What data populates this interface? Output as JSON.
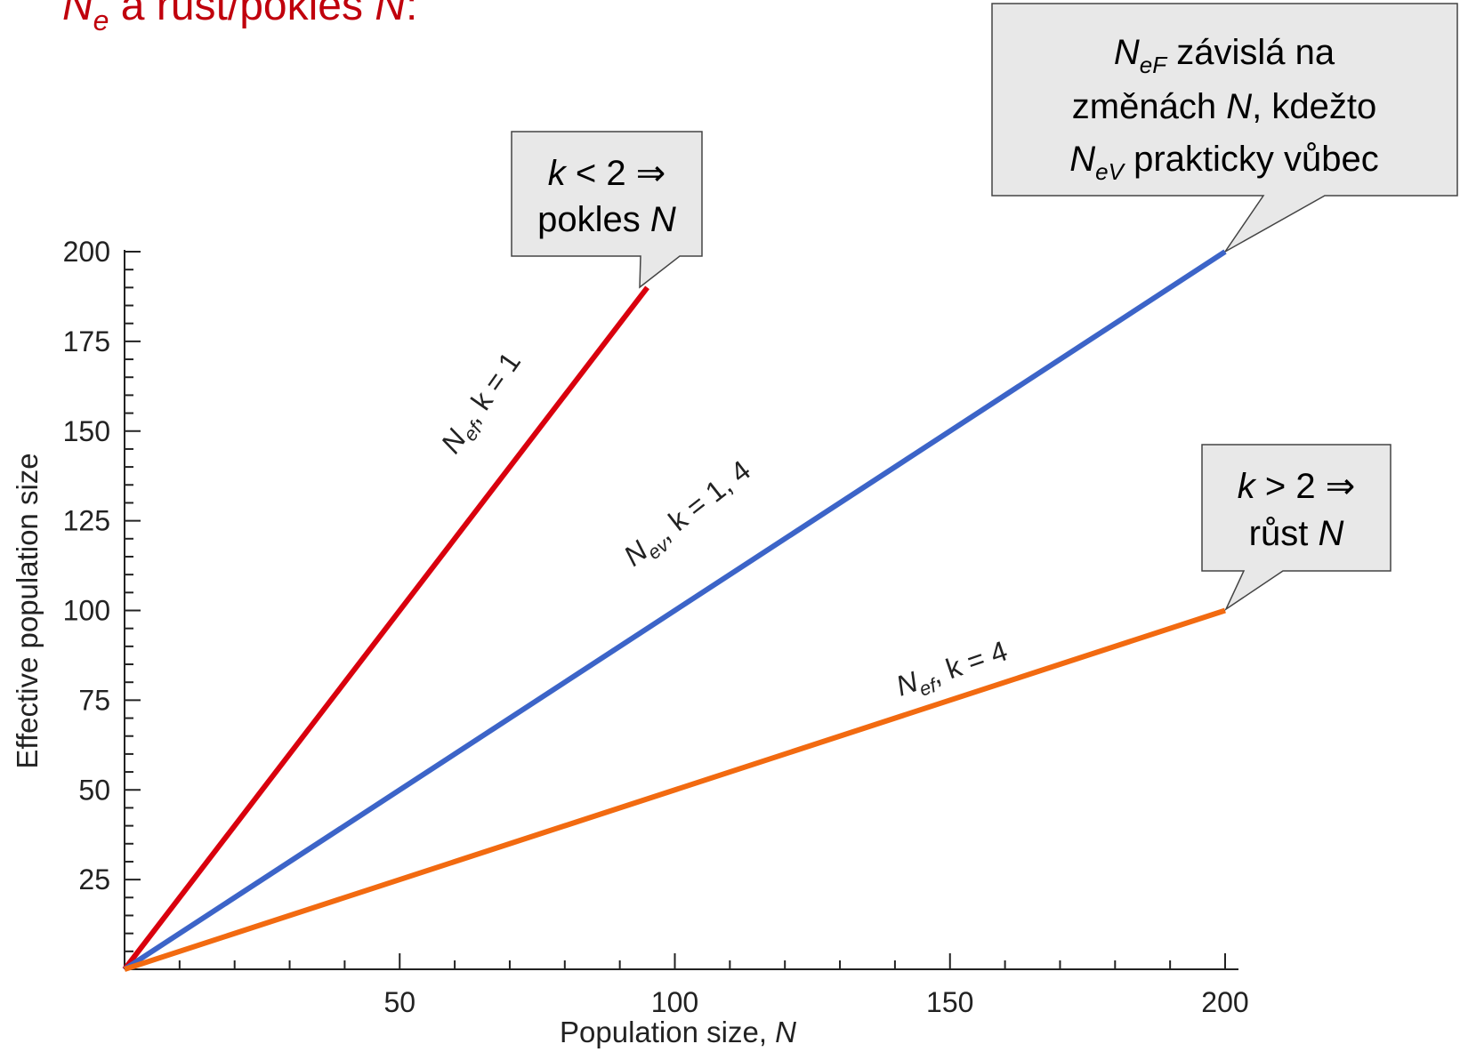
{
  "slide_title": {
    "main": "N",
    "sub": "e",
    "rest": " a růst/pokles ",
    "italic_end": "N",
    "end": ":"
  },
  "chart_data": {
    "type": "line",
    "xlabel": "Population size, N",
    "ylabel": "Effective population size",
    "xlim": [
      0,
      205
    ],
    "ylim": [
      0,
      205
    ],
    "x_ticks": [
      50,
      100,
      150,
      200
    ],
    "y_ticks": [
      25,
      50,
      75,
      100,
      125,
      150,
      175,
      200
    ],
    "x_minor_step": 10,
    "y_minor_step": 5,
    "series": [
      {
        "name": "Nef, k = 1",
        "color": "#d9000d",
        "x": [
          0,
          95
        ],
        "y": [
          0,
          190
        ]
      },
      {
        "name": "Nev, k = 1, 4",
        "color": "#3c64c8",
        "x": [
          0,
          200
        ],
        "y": [
          0,
          200
        ]
      },
      {
        "name": "Nef, k = 4",
        "color": "#f26a10",
        "x": [
          0,
          200
        ],
        "y": [
          0,
          100
        ]
      }
    ]
  },
  "series_labels": {
    "red": {
      "N": "N",
      "sub": "ef",
      "rest": ", k = 1"
    },
    "blue": {
      "N": "N",
      "sub": "ev",
      "rest": ", k = 1, 4"
    },
    "orange": {
      "N": "N",
      "sub": "ef",
      "rest": ", k = 4"
    }
  },
  "callouts": {
    "decline": {
      "line1_k": "k",
      "line1_rest": " < 2 ⇒",
      "line2": "pokles ",
      "line2_italic": "N"
    },
    "growth": {
      "line1_k": "k",
      "line1_rest": " > 2 ⇒",
      "line2": "růst ",
      "line2_italic": "N"
    },
    "note": {
      "l1_N": "N",
      "l1_sub": "eF",
      "l1_rest": " závislá na",
      "l2": "změnách ",
      "l2_N": "N",
      "l2_rest": ", kdežto",
      "l3_N": "N",
      "l3_sub": "eV",
      "l3_rest": " prakticky vůbec"
    }
  },
  "colors": {
    "title": "#c0000c",
    "callout_fill": "#e8e8e8",
    "axis": "#222222"
  }
}
